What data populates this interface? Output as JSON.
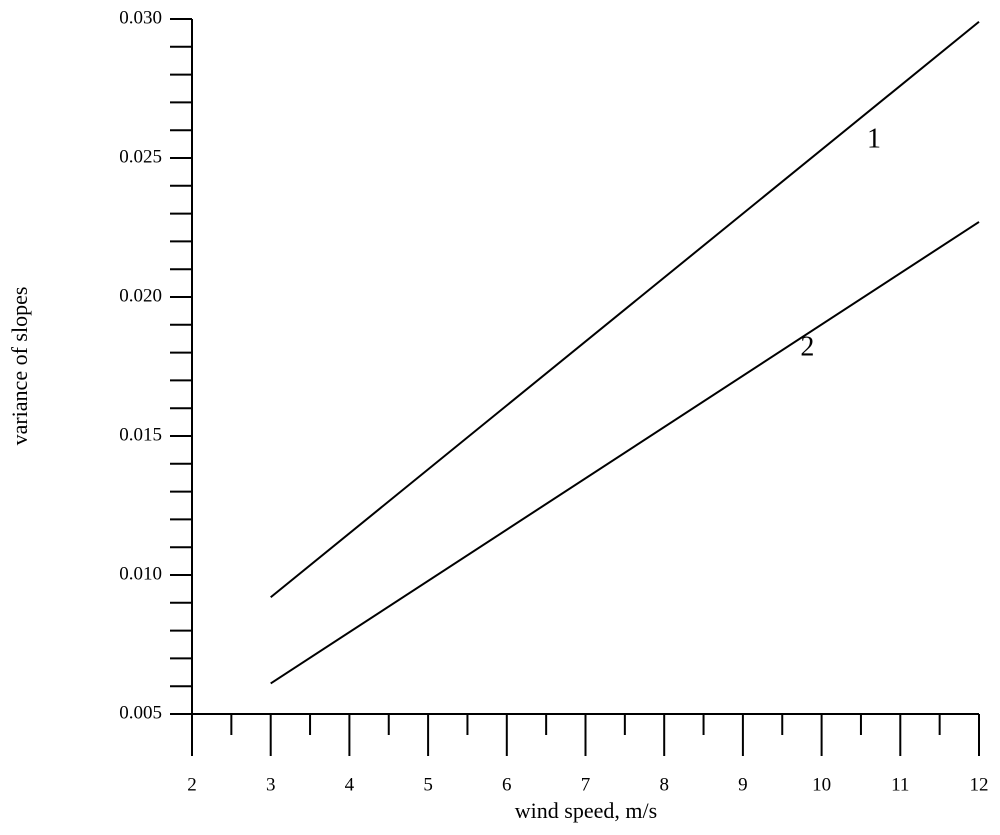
{
  "chart_data": {
    "type": "line",
    "xlabel": "wind speed, m/s",
    "ylabel": "variance of slopes",
    "x": [
      3,
      12
    ],
    "series": [
      {
        "name": "1",
        "color": "#000000",
        "values": [
          0.0092,
          0.0299
        ]
      },
      {
        "name": "2",
        "color": "#000000",
        "values": [
          0.0061,
          0.0227
        ]
      }
    ],
    "xlim": [
      2,
      12
    ],
    "xticks": [
      2,
      3,
      4,
      5,
      6,
      7,
      8,
      9,
      10,
      11,
      12
    ],
    "xminorticks": [
      2.5,
      3.5,
      4.5,
      5.5,
      6.5,
      7.5,
      8.5,
      9.5,
      10.5,
      11.5
    ],
    "ylim": [
      0.005,
      0.03
    ],
    "yticks": [
      {
        "value": 0.005,
        "label": "0.005"
      },
      {
        "value": 0.01,
        "label": "0.010"
      },
      {
        "value": 0.015,
        "label": "0.015"
      },
      {
        "value": 0.02,
        "label": "0.020"
      },
      {
        "value": 0.025,
        "label": "0.025"
      },
      {
        "value": 0.03,
        "label": "0.030"
      }
    ],
    "yminorticks": [
      0.006,
      0.007,
      0.008,
      0.009,
      0.011,
      0.012,
      0.013,
      0.014,
      0.016,
      0.017,
      0.018,
      0.019,
      0.021,
      0.022,
      0.023,
      0.024,
      0.026,
      0.027,
      0.028,
      0.029
    ],
    "grid": false
  }
}
